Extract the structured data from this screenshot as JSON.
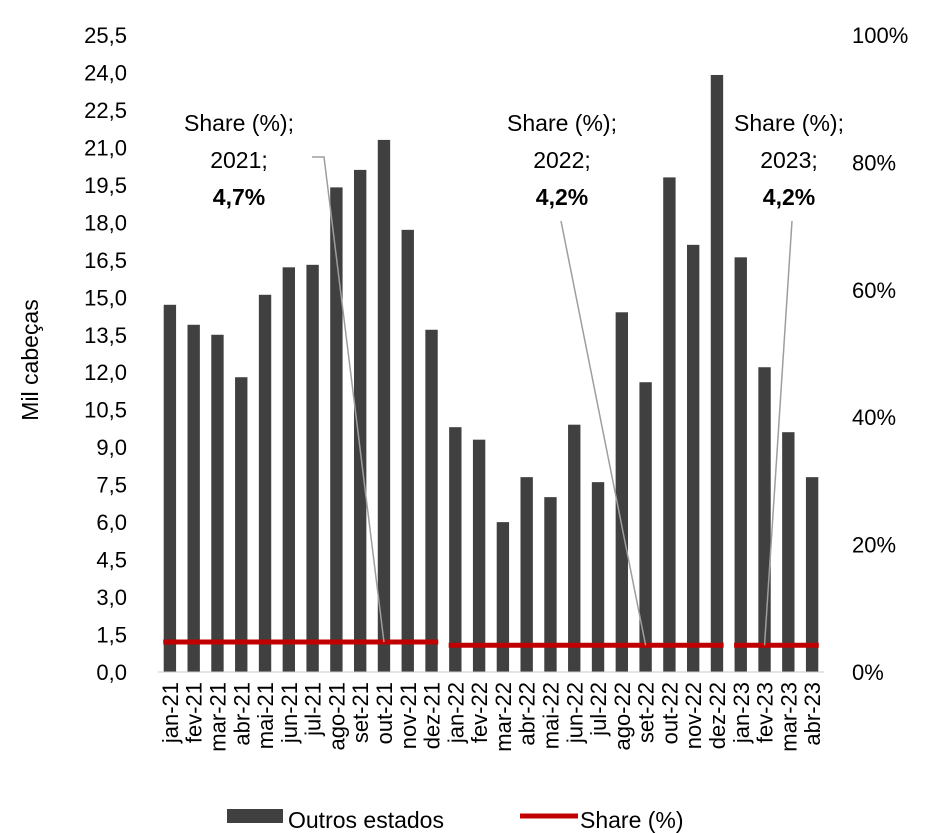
{
  "chart_data": {
    "type": "bar",
    "ylabel": "Mil cabeças",
    "ylim": [
      0,
      25.5
    ],
    "y2lim": [
      0,
      100
    ],
    "y_ticks": [
      "0,0",
      "1,5",
      "3,0",
      "4,5",
      "6,0",
      "7,5",
      "9,0",
      "10,5",
      "12,0",
      "13,5",
      "15,0",
      "16,5",
      "18,0",
      "19,5",
      "21,0",
      "22,5",
      "24,0",
      "25,5"
    ],
    "y2_ticks": [
      "0%",
      "20%",
      "40%",
      "60%",
      "80%",
      "100%"
    ],
    "categories": [
      "jan-21",
      "fev-21",
      "mar-21",
      "abr-21",
      "mai-21",
      "jun-21",
      "jul-21",
      "ago-21",
      "set-21",
      "out-21",
      "nov-21",
      "dez-21",
      "jan-22",
      "fev-22",
      "mar-22",
      "abr-22",
      "mai-22",
      "jun-22",
      "jul-22",
      "ago-22",
      "set-22",
      "out-22",
      "nov-22",
      "dez-22",
      "jan-23",
      "fev-23",
      "mar-23",
      "abr-23"
    ],
    "series": [
      {
        "name": "Outros estados",
        "type": "bar",
        "color": "#404040",
        "values": [
          14.7,
          13.9,
          13.5,
          11.8,
          15.1,
          16.2,
          16.3,
          19.4,
          20.1,
          21.3,
          17.7,
          13.7,
          9.8,
          9.3,
          6.0,
          7.8,
          7.0,
          9.9,
          7.6,
          14.4,
          11.6,
          19.8,
          17.1,
          23.9,
          16.6,
          12.2,
          9.6,
          7.8
        ]
      },
      {
        "name": "Share (%)",
        "type": "line",
        "axis": "secondary",
        "color": "#c00000",
        "segments": [
          {
            "from": "jan-21",
            "to": "dez-21",
            "value": 4.7
          },
          {
            "from": "jan-22",
            "to": "dez-22",
            "value": 4.2
          },
          {
            "from": "jan-23",
            "to": "abr-23",
            "value": 4.2
          }
        ]
      }
    ],
    "annotations": [
      {
        "line1": "Share (%);",
        "line2": "2021;",
        "value": "4,7%",
        "points_to": "out-21"
      },
      {
        "line1": "Share (%);",
        "line2": "2022;",
        "value": "4,2%",
        "points_to": "set-22"
      },
      {
        "line1": "Share (%);",
        "line2": "2023;",
        "value": "4,2%",
        "points_to": "fev-23"
      }
    ],
    "legend": {
      "position": "bottom",
      "items": [
        "Outros estados",
        "Share (%)"
      ]
    },
    "grid": false
  }
}
